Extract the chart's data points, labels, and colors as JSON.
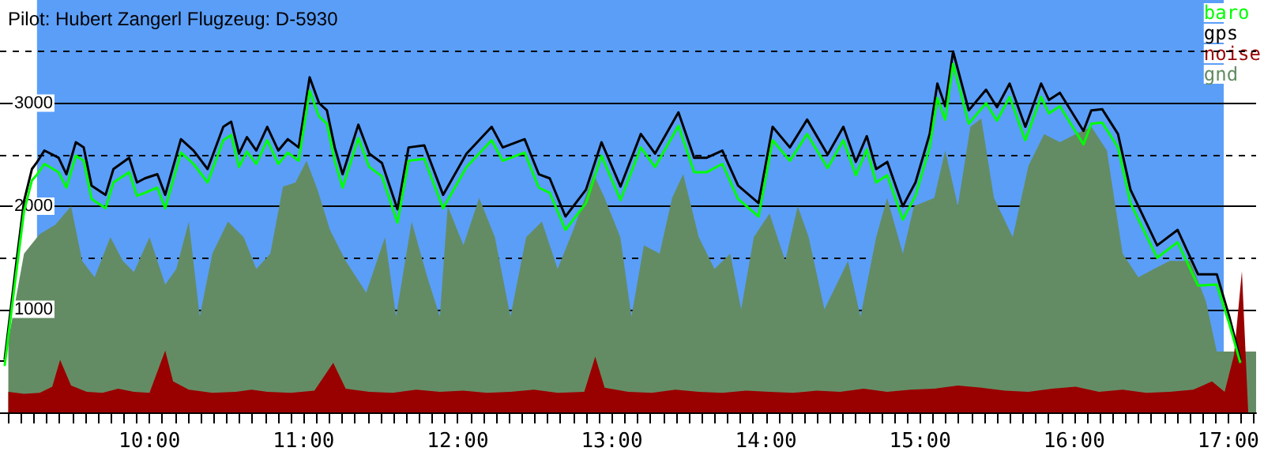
{
  "chart_data": {
    "type": "line",
    "title": "Pilot: Hubert Zangerl Flugzeug: D-5930",
    "xlim": [
      9.03,
      17.18
    ],
    "ylim": [
      0,
      4000
    ],
    "xticks": [
      {
        "value": 9.0833,
        "label": null
      },
      {
        "value": 9.1667,
        "label": null
      },
      {
        "value": 9.25,
        "label": null
      },
      {
        "value": 9.3333,
        "label": null
      },
      {
        "value": 9.4167,
        "label": null
      },
      {
        "value": 9.5,
        "label": null
      },
      {
        "value": 9.5833,
        "label": null
      },
      {
        "value": 9.6667,
        "label": null
      },
      {
        "value": 9.75,
        "label": null
      },
      {
        "value": 9.8333,
        "label": null
      },
      {
        "value": 9.9167,
        "label": null
      },
      {
        "value": 10,
        "label": "10:00"
      },
      {
        "value": 10.0833,
        "label": null
      },
      {
        "value": 10.1667,
        "label": null
      },
      {
        "value": 10.25,
        "label": null
      },
      {
        "value": 10.3333,
        "label": null
      },
      {
        "value": 10.4167,
        "label": null
      },
      {
        "value": 10.5,
        "label": null
      },
      {
        "value": 10.5833,
        "label": null
      },
      {
        "value": 10.6667,
        "label": null
      },
      {
        "value": 10.75,
        "label": null
      },
      {
        "value": 10.8333,
        "label": null
      },
      {
        "value": 10.9167,
        "label": null
      },
      {
        "value": 11,
        "label": "11:00"
      },
      {
        "value": 11.0833,
        "label": null
      },
      {
        "value": 11.1667,
        "label": null
      },
      {
        "value": 11.25,
        "label": null
      },
      {
        "value": 11.3333,
        "label": null
      },
      {
        "value": 11.4167,
        "label": null
      },
      {
        "value": 11.5,
        "label": null
      },
      {
        "value": 11.5833,
        "label": null
      },
      {
        "value": 11.6667,
        "label": null
      },
      {
        "value": 11.75,
        "label": null
      },
      {
        "value": 11.8333,
        "label": null
      },
      {
        "value": 11.9167,
        "label": null
      },
      {
        "value": 12,
        "label": "12:00"
      },
      {
        "value": 12.0833,
        "label": null
      },
      {
        "value": 12.1667,
        "label": null
      },
      {
        "value": 12.25,
        "label": null
      },
      {
        "value": 12.3333,
        "label": null
      },
      {
        "value": 12.4167,
        "label": null
      },
      {
        "value": 12.5,
        "label": null
      },
      {
        "value": 12.5833,
        "label": null
      },
      {
        "value": 12.6667,
        "label": null
      },
      {
        "value": 12.75,
        "label": null
      },
      {
        "value": 12.8333,
        "label": null
      },
      {
        "value": 12.9167,
        "label": null
      },
      {
        "value": 13,
        "label": "13:00"
      },
      {
        "value": 13.0833,
        "label": null
      },
      {
        "value": 13.1667,
        "label": null
      },
      {
        "value": 13.25,
        "label": null
      },
      {
        "value": 13.3333,
        "label": null
      },
      {
        "value": 13.4167,
        "label": null
      },
      {
        "value": 13.5,
        "label": null
      },
      {
        "value": 13.5833,
        "label": null
      },
      {
        "value": 13.6667,
        "label": null
      },
      {
        "value": 13.75,
        "label": null
      },
      {
        "value": 13.8333,
        "label": null
      },
      {
        "value": 13.9167,
        "label": null
      },
      {
        "value": 14,
        "label": "14:00"
      },
      {
        "value": 14.0833,
        "label": null
      },
      {
        "value": 14.1667,
        "label": null
      },
      {
        "value": 14.25,
        "label": null
      },
      {
        "value": 14.3333,
        "label": null
      },
      {
        "value": 14.4167,
        "label": null
      },
      {
        "value": 14.5,
        "label": null
      },
      {
        "value": 14.5833,
        "label": null
      },
      {
        "value": 14.6667,
        "label": null
      },
      {
        "value": 14.75,
        "label": null
      },
      {
        "value": 14.8333,
        "label": null
      },
      {
        "value": 14.9167,
        "label": null
      },
      {
        "value": 15,
        "label": "15:00"
      },
      {
        "value": 15.0833,
        "label": null
      },
      {
        "value": 15.1667,
        "label": null
      },
      {
        "value": 15.25,
        "label": null
      },
      {
        "value": 15.3333,
        "label": null
      },
      {
        "value": 15.4167,
        "label": null
      },
      {
        "value": 15.5,
        "label": null
      },
      {
        "value": 15.5833,
        "label": null
      },
      {
        "value": 15.6667,
        "label": null
      },
      {
        "value": 15.75,
        "label": null
      },
      {
        "value": 15.8333,
        "label": null
      },
      {
        "value": 15.9167,
        "label": null
      },
      {
        "value": 16,
        "label": "16:00"
      },
      {
        "value": 16.0833,
        "label": null
      },
      {
        "value": 16.1667,
        "label": null
      },
      {
        "value": 16.25,
        "label": null
      },
      {
        "value": 16.3333,
        "label": null
      },
      {
        "value": 16.4167,
        "label": null
      },
      {
        "value": 16.5,
        "label": null
      },
      {
        "value": 16.5833,
        "label": null
      },
      {
        "value": 16.6667,
        "label": null
      },
      {
        "value": 16.75,
        "label": null
      },
      {
        "value": 16.8333,
        "label": null
      },
      {
        "value": 16.9167,
        "label": null
      },
      {
        "value": 17,
        "label": "17:00"
      },
      {
        "value": 17.0833,
        "label": null
      },
      {
        "value": 17.1667,
        "label": null
      }
    ],
    "yticks": [
      {
        "value": 500,
        "label": null
      },
      1000,
      {
        "value": 1500,
        "label": null
      },
      2000,
      {
        "value": 2500,
        "label": null
      },
      3000,
      {
        "value": 3500,
        "label": null
      }
    ],
    "grid": "y",
    "legend": "top right",
    "marker": "none",
    "line_style": "solid",
    "bands": [
      {
        "axis": "x",
        "from": 9.27,
        "to": 16.97,
        "color": "#5a9ef8"
      }
    ],
    "series": [
      {
        "name": "baro",
        "type": "line",
        "color": "#00ff00",
        "x": [
          9.06,
          9.135,
          9.186,
          9.237,
          9.267,
          9.318,
          9.41,
          9.461,
          9.522,
          9.573,
          9.624,
          9.715,
          9.766,
          9.868,
          9.919,
          9.97,
          10.051,
          10.102,
          10.204,
          10.286,
          10.377,
          10.479,
          10.53,
          10.581,
          10.632,
          10.693,
          10.764,
          10.836,
          10.897,
          10.968,
          11.039,
          11.1,
          11.151,
          11.202,
          11.253,
          11.355,
          11.426,
          11.508,
          11.609,
          11.681,
          11.783,
          11.905,
          12.057,
          12.22,
          12.292,
          12.434,
          12.526,
          12.597,
          12.699,
          12.832,
          12.933,
          13.056,
          13.188,
          13.28,
          13.432,
          13.534,
          13.616,
          13.717,
          13.819,
          13.952,
          14.043,
          14.155,
          14.267,
          14.4,
          14.502,
          14.583,
          14.654,
          14.715,
          14.787,
          14.888,
          14.97,
          15.062,
          15.112,
          15.163,
          15.214,
          15.316,
          15.428,
          15.499,
          15.581,
          15.683,
          15.785,
          15.836,
          15.907,
          16.06,
          16.111,
          16.182,
          16.284,
          16.365,
          16.538,
          16.671,
          16.803,
          16.925,
          17.006,
          17.078
        ],
        "values": [
          450,
          1350,
          1950,
          2250,
          2300,
          2410,
          2330,
          2180,
          2490,
          2440,
          2070,
          1980,
          2230,
          2330,
          2100,
          2130,
          2180,
          1980,
          2520,
          2410,
          2230,
          2640,
          2690,
          2380,
          2530,
          2410,
          2640,
          2410,
          2520,
          2440,
          3120,
          2870,
          2800,
          2440,
          2180,
          2660,
          2380,
          2290,
          1840,
          2440,
          2460,
          1980,
          2380,
          2640,
          2440,
          2520,
          2180,
          2130,
          1770,
          2030,
          2490,
          2060,
          2570,
          2380,
          2780,
          2330,
          2330,
          2410,
          2070,
          1900,
          2640,
          2440,
          2700,
          2370,
          2640,
          2300,
          2550,
          2230,
          2300,
          1870,
          2100,
          2570,
          3050,
          2840,
          3380,
          2800,
          3000,
          2830,
          3060,
          2640,
          3060,
          2900,
          2970,
          2600,
          2800,
          2810,
          2570,
          2030,
          1500,
          1650,
          1230,
          1240,
          860,
          480
        ]
      },
      {
        "name": "gps",
        "type": "line",
        "color": "#000000",
        "x": [
          9.06,
          9.135,
          9.186,
          9.237,
          9.267,
          9.318,
          9.41,
          9.461,
          9.522,
          9.573,
          9.624,
          9.715,
          9.766,
          9.868,
          9.919,
          9.97,
          10.051,
          10.102,
          10.204,
          10.286,
          10.377,
          10.479,
          10.53,
          10.581,
          10.632,
          10.693,
          10.764,
          10.836,
          10.897,
          10.968,
          11.039,
          11.1,
          11.151,
          11.202,
          11.253,
          11.355,
          11.426,
          11.508,
          11.609,
          11.681,
          11.783,
          11.905,
          12.057,
          12.22,
          12.292,
          12.434,
          12.526,
          12.597,
          12.699,
          12.832,
          12.933,
          13.056,
          13.188,
          13.28,
          13.432,
          13.534,
          13.616,
          13.717,
          13.819,
          13.952,
          14.043,
          14.155,
          14.267,
          14.4,
          14.502,
          14.583,
          14.654,
          14.715,
          14.787,
          14.888,
          14.97,
          15.062,
          15.112,
          15.163,
          15.214,
          15.316,
          15.428,
          15.499,
          15.581,
          15.683,
          15.785,
          15.836,
          15.907,
          16.06,
          16.111,
          16.182,
          16.284,
          16.365,
          16.538,
          16.671,
          16.803,
          16.925,
          17.006,
          17.078
        ],
        "values": [
          510,
          1440,
          2050,
          2360,
          2420,
          2540,
          2470,
          2310,
          2620,
          2570,
          2200,
          2110,
          2360,
          2470,
          2230,
          2270,
          2310,
          2110,
          2650,
          2540,
          2360,
          2770,
          2820,
          2510,
          2670,
          2540,
          2770,
          2540,
          2650,
          2570,
          3250,
          3000,
          2930,
          2570,
          2310,
          2790,
          2510,
          2420,
          1970,
          2570,
          2590,
          2110,
          2510,
          2770,
          2570,
          2650,
          2310,
          2270,
          1900,
          2160,
          2620,
          2190,
          2700,
          2510,
          2910,
          2470,
          2470,
          2540,
          2200,
          2030,
          2770,
          2570,
          2840,
          2500,
          2770,
          2430,
          2680,
          2360,
          2430,
          2000,
          2230,
          2700,
          3190,
          2970,
          3500,
          2930,
          3130,
          2960,
          3190,
          2770,
          3190,
          3030,
          3100,
          2730,
          2930,
          2940,
          2700,
          2160,
          1620,
          1770,
          1340,
          1340,
          930,
          510
        ]
      },
      {
        "name": "noise",
        "type": "area",
        "color": "#990000",
        "x": [
          9.084,
          9.186,
          9.288,
          9.369,
          9.42,
          9.491,
          9.593,
          9.695,
          9.797,
          9.899,
          10.0,
          10.102,
          10.153,
          10.255,
          10.408,
          10.56,
          10.662,
          10.764,
          10.917,
          11.07,
          11.192,
          11.273,
          11.426,
          11.579,
          11.731,
          11.884,
          12.037,
          12.19,
          12.342,
          12.495,
          12.648,
          12.821,
          12.892,
          12.953,
          13.106,
          13.259,
          13.412,
          13.564,
          13.717,
          13.87,
          14.023,
          14.175,
          14.328,
          14.481,
          14.634,
          14.786,
          14.939,
          15.092,
          15.245,
          15.397,
          15.55,
          15.703,
          15.856,
          16.009,
          16.161,
          16.314,
          16.467,
          16.62,
          16.772,
          16.894,
          16.976,
          17.037,
          17.088,
          17.129
        ],
        "values": [
          200,
          180,
          190,
          250,
          510,
          260,
          200,
          190,
          230,
          200,
          190,
          600,
          300,
          220,
          190,
          200,
          220,
          200,
          190,
          210,
          480,
          230,
          200,
          190,
          220,
          200,
          210,
          190,
          200,
          220,
          190,
          200,
          540,
          240,
          200,
          190,
          220,
          200,
          190,
          210,
          200,
          190,
          210,
          200,
          230,
          200,
          220,
          230,
          260,
          240,
          210,
          200,
          230,
          250,
          200,
          220,
          190,
          200,
          220,
          300,
          200,
          560,
          1370,
          0
        ]
      },
      {
        "name": "gnd",
        "type": "area",
        "color": "#648c64",
        "x": [
          9.084,
          9.186,
          9.288,
          9.389,
          9.491,
          9.563,
          9.644,
          9.746,
          9.827,
          9.899,
          10.0,
          10.102,
          10.174,
          10.255,
          10.326,
          10.408,
          10.509,
          10.611,
          10.693,
          10.784,
          10.866,
          10.947,
          11.019,
          11.09,
          11.171,
          11.273,
          11.406,
          11.528,
          11.6,
          11.701,
          11.803,
          11.884,
          11.935,
          12.037,
          12.139,
          12.241,
          12.342,
          12.444,
          12.546,
          12.648,
          12.75,
          12.882,
          12.953,
          13.055,
          13.127,
          13.208,
          13.31,
          13.391,
          13.463,
          13.564,
          13.666,
          13.768,
          13.839,
          13.921,
          14.023,
          14.125,
          14.206,
          14.277,
          14.379,
          14.481,
          14.532,
          14.613,
          14.715,
          14.786,
          14.888,
          14.96,
          15.092,
          15.163,
          15.245,
          15.326,
          15.397,
          15.479,
          15.601,
          15.703,
          15.805,
          15.907,
          16.009,
          16.111,
          16.212,
          16.314,
          16.416,
          16.517,
          16.619,
          16.752,
          16.854,
          16.925,
          17.18
        ],
        "values": [
          700,
          1540,
          1730,
          1820,
          2000,
          1470,
          1310,
          1700,
          1470,
          1360,
          1700,
          1240,
          1390,
          1850,
          930,
          1540,
          1850,
          1700,
          1390,
          1540,
          2190,
          2230,
          2440,
          2160,
          1770,
          1470,
          1160,
          1700,
          930,
          1850,
          1310,
          930,
          2000,
          1620,
          2080,
          1700,
          930,
          1700,
          1850,
          1390,
          1770,
          2310,
          2080,
          1700,
          930,
          1620,
          1540,
          2080,
          2310,
          1700,
          1390,
          1540,
          1000,
          1700,
          1930,
          1470,
          2000,
          1700,
          1000,
          1310,
          1470,
          930,
          1700,
          2080,
          1540,
          2000,
          2080,
          2540,
          2000,
          2770,
          2850,
          2080,
          1700,
          2390,
          2700,
          2620,
          2700,
          2770,
          2540,
          1540,
          1310,
          1390,
          1470,
          1470,
          1080,
          590,
          590
        ]
      }
    ]
  }
}
